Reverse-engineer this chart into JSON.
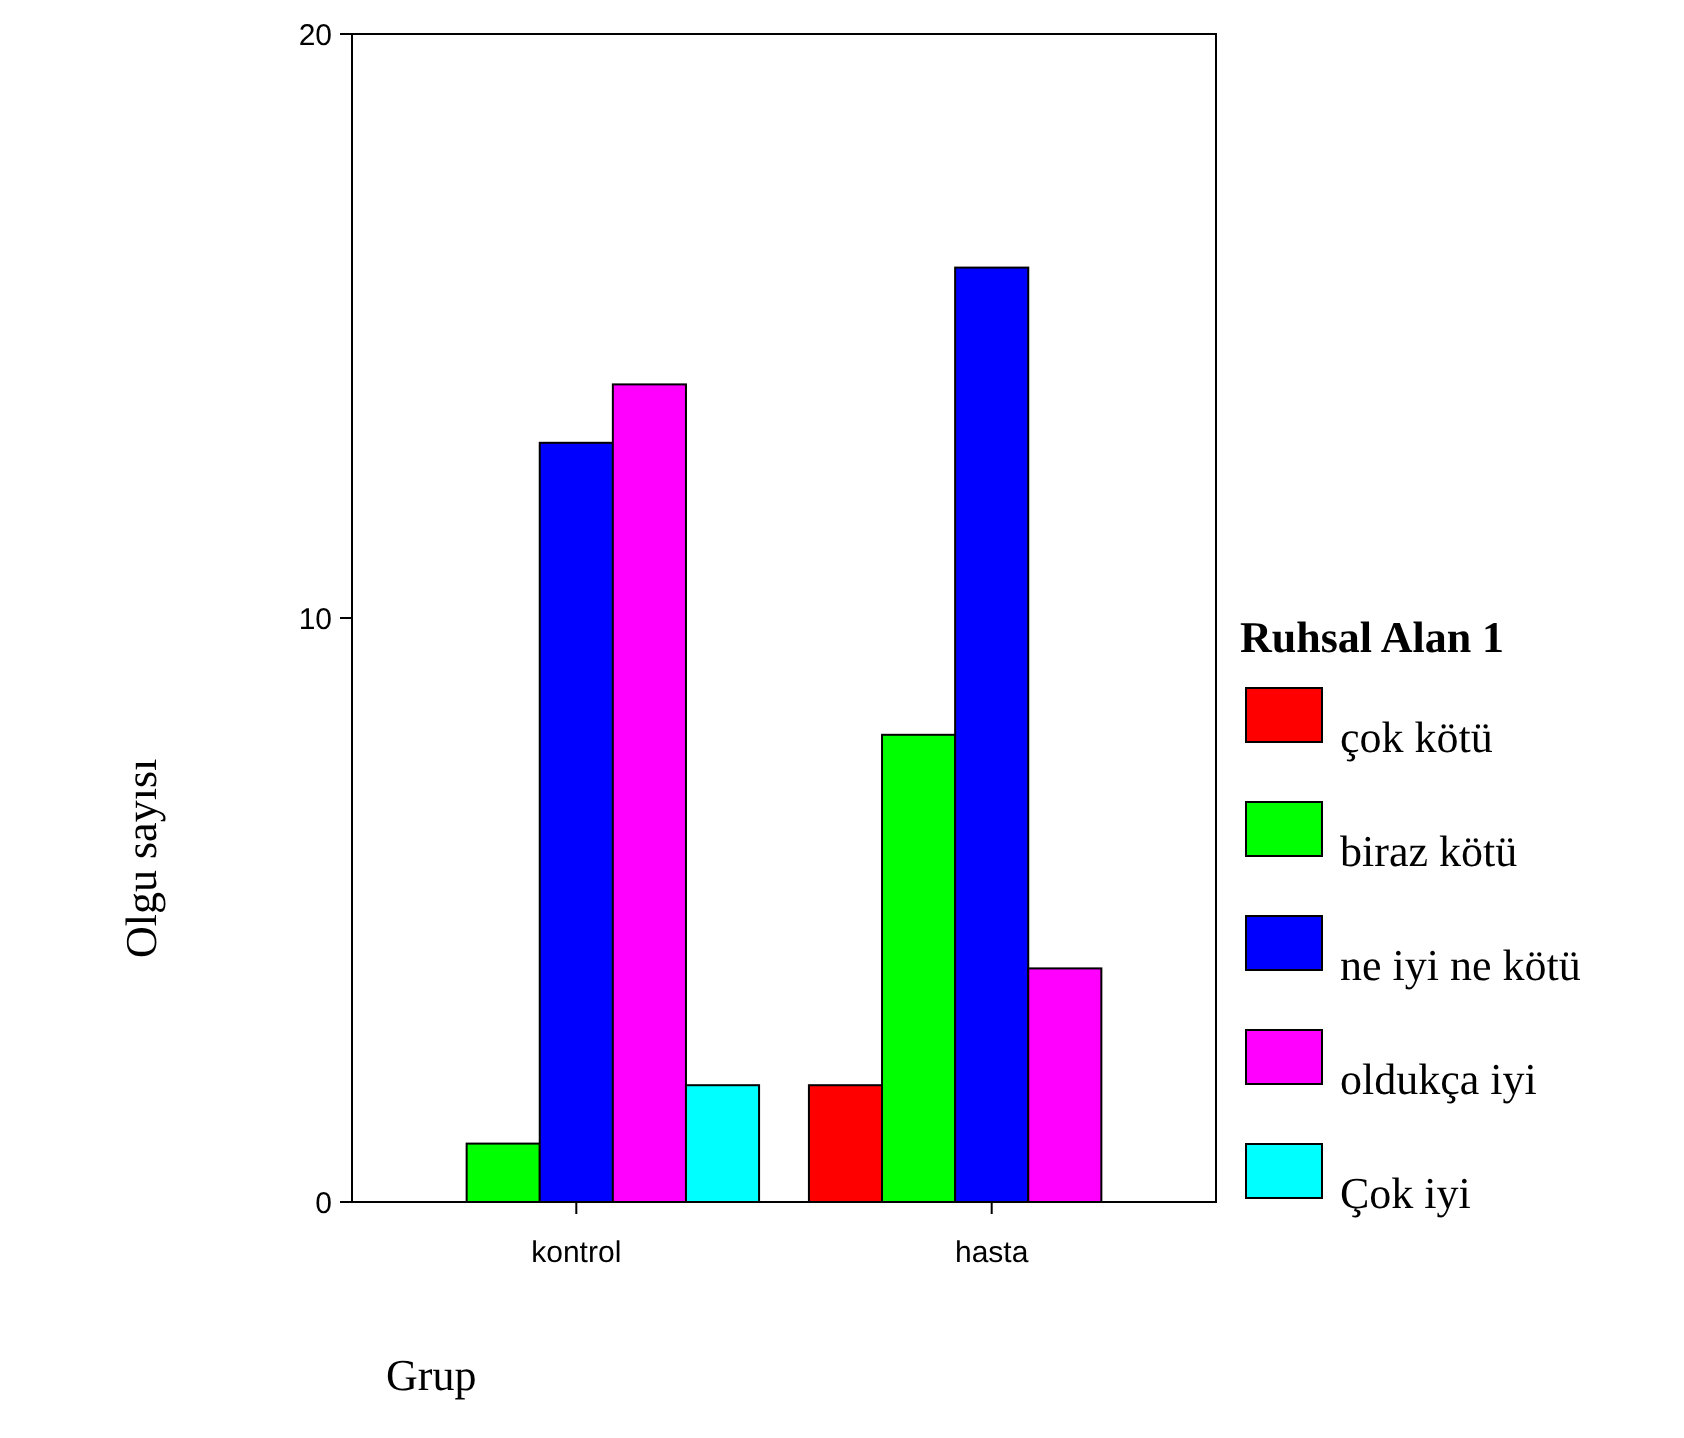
{
  "chart_data": {
    "type": "bar",
    "xlabel": "Grup",
    "ylabel": "Olgu sayısı",
    "legend_title": "Ruhsal Alan 1",
    "categories": [
      "kontrol",
      "hasta"
    ],
    "ylim": [
      0,
      20
    ],
    "yticks": [
      0,
      10,
      20
    ],
    "grid": false,
    "legend": "right",
    "series": [
      {
        "name": "çok kötü",
        "color": "#ff0000",
        "values": [
          0,
          2
        ]
      },
      {
        "name": "biraz kötü",
        "color": "#00ff00",
        "values": [
          1,
          8
        ]
      },
      {
        "name": "ne iyi ne kötü",
        "color": "#0000ff",
        "values": [
          13,
          16
        ]
      },
      {
        "name": "oldukça iyi",
        "color": "#ff00ff",
        "values": [
          14,
          4
        ]
      },
      {
        "name": "Çok iyi",
        "color": "#00ffff",
        "values": [
          2,
          0
        ]
      }
    ]
  }
}
